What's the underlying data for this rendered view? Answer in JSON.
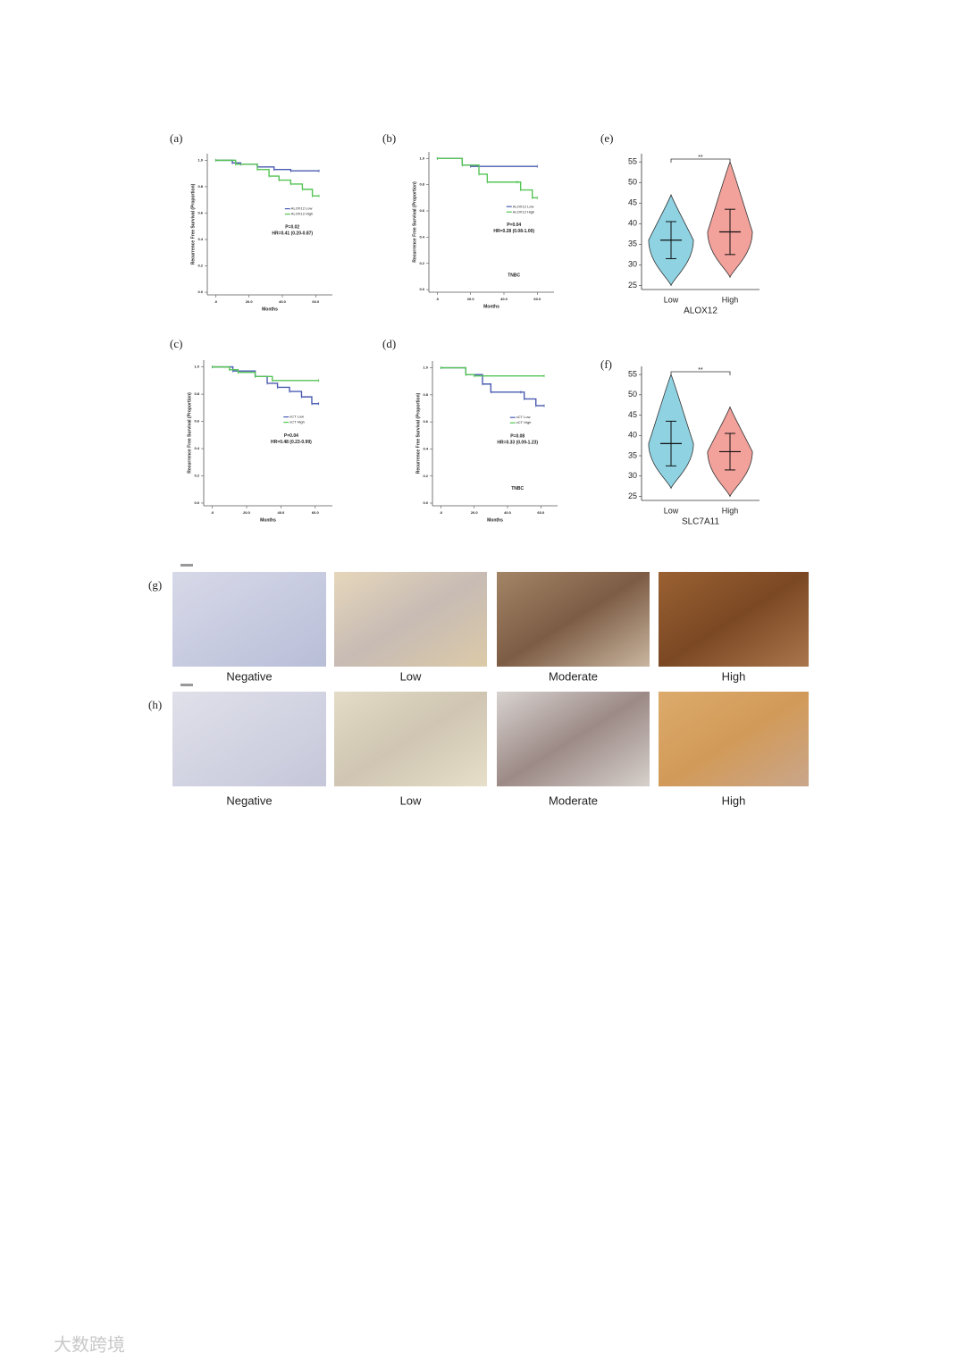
{
  "chart_data": [
    {
      "type": "km",
      "label": "(a)",
      "ylabel": "Recurrence Free Survival (Proportion)",
      "xlabel": "Months",
      "xlim": [
        -5,
        70
      ],
      "xticks": [
        {
          "value": 0,
          "label": ".0"
        },
        {
          "value": 20,
          "label": "20.0"
        },
        {
          "value": 40,
          "label": "40.0"
        },
        {
          "value": 60,
          "label": "60.0"
        }
      ],
      "ylim": [
        -0.02,
        1.05
      ],
      "yticks": [
        {
          "value": 0,
          "label": "0.0"
        },
        {
          "value": 0.2,
          "label": "0.2"
        },
        {
          "value": 0.4,
          "label": "0.4"
        },
        {
          "value": 0.6,
          "label": "0.6"
        },
        {
          "value": 0.8,
          "label": "0.8"
        },
        {
          "value": 1,
          "label": "1.0"
        }
      ],
      "series": [
        {
          "name": "ALOX12 Low",
          "color": "#4a5bb0",
          "x": [
            0,
            10,
            15,
            25,
            35,
            45,
            62
          ],
          "values": [
            1,
            0.98,
            0.97,
            0.95,
            0.93,
            0.92,
            0.92
          ]
        },
        {
          "name": "ALOX12 High",
          "color": "#55c455",
          "x": [
            0,
            12,
            25,
            32,
            38,
            45,
            52,
            58,
            62
          ],
          "values": [
            1,
            0.97,
            0.93,
            0.88,
            0.85,
            0.82,
            0.78,
            0.73,
            0.73
          ]
        }
      ],
      "annotations": [
        "P=0.02",
        "HR=0.41 (0.20-0.87)"
      ]
    },
    {
      "type": "km",
      "label": "(b)",
      "ylabel": "Recurrence Free Survival (Proportion)",
      "xlabel": "Months",
      "xlim": [
        -5,
        70
      ],
      "xticks": [
        {
          "value": 0,
          "label": ".0"
        },
        {
          "value": 20,
          "label": "20.0"
        },
        {
          "value": 40,
          "label": "40.0"
        },
        {
          "value": 60,
          "label": "60.0"
        }
      ],
      "ylim": [
        -0.02,
        1.05
      ],
      "yticks": [
        {
          "value": 0,
          "label": "0.0"
        },
        {
          "value": 0.2,
          "label": "0.2"
        },
        {
          "value": 0.4,
          "label": "0.4"
        },
        {
          "value": 0.6,
          "label": "0.6"
        },
        {
          "value": 0.8,
          "label": "0.8"
        },
        {
          "value": 1,
          "label": "1.0"
        }
      ],
      "series": [
        {
          "name": "ALOX12 Low",
          "color": "#4a5bb0",
          "x": [
            0,
            15,
            20,
            60
          ],
          "values": [
            1,
            0.95,
            0.94,
            0.94
          ]
        },
        {
          "name": "ALOX12 High",
          "color": "#55c455",
          "x": [
            0,
            15,
            25,
            30,
            48,
            50,
            57,
            60
          ],
          "values": [
            1,
            0.95,
            0.88,
            0.82,
            0.82,
            0.76,
            0.7,
            0.7
          ]
        }
      ],
      "annotations": [
        "P=0.04",
        "HR=0.28 (0.08-1.00)",
        "TNBC"
      ]
    },
    {
      "type": "violin",
      "label": "(e)",
      "xlabel": "ALOX12",
      "significance": "**",
      "categories": [
        "Low",
        "High"
      ],
      "colors": [
        "#8fd3e3",
        "#f2a19b"
      ],
      "ylim": [
        24,
        57
      ],
      "yticks": [
        25,
        30,
        35,
        40,
        45,
        50,
        55
      ],
      "mean": [
        36,
        38
      ],
      "sd": [
        4.5,
        5.5
      ],
      "min": [
        25,
        27
      ],
      "max": [
        47,
        55
      ]
    },
    {
      "type": "km",
      "label": "(c)",
      "ylabel": "Recurrence Free Survival (Proportion)",
      "xlabel": "Months",
      "xlim": [
        -5,
        70
      ],
      "xticks": [
        {
          "value": 0,
          "label": ".0"
        },
        {
          "value": 20,
          "label": "20.0"
        },
        {
          "value": 40,
          "label": "40.0"
        },
        {
          "value": 60,
          "label": "60.0"
        }
      ],
      "ylim": [
        -0.02,
        1.05
      ],
      "yticks": [
        {
          "value": 0,
          "label": "0.0"
        },
        {
          "value": 0.2,
          "label": "0.2"
        },
        {
          "value": 0.4,
          "label": "0.4"
        },
        {
          "value": 0.6,
          "label": "0.6"
        },
        {
          "value": 0.8,
          "label": "0.8"
        },
        {
          "value": 1,
          "label": "1.0"
        }
      ],
      "series": [
        {
          "name": "xCT Low",
          "color": "#4a5bb0",
          "x": [
            0,
            12,
            25,
            32,
            38,
            45,
            52,
            58,
            62
          ],
          "values": [
            1,
            0.97,
            0.93,
            0.88,
            0.85,
            0.82,
            0.78,
            0.73,
            0.73
          ]
        },
        {
          "name": "xCT High",
          "color": "#55c455",
          "x": [
            0,
            10,
            15,
            25,
            35,
            62
          ],
          "values": [
            1,
            0.98,
            0.96,
            0.93,
            0.9,
            0.9
          ]
        }
      ],
      "annotations": [
        "P=0.04",
        "HR=0.48 (0.23-0.99)"
      ]
    },
    {
      "type": "km",
      "label": "(d)",
      "ylabel": "Recurrence Free Survival (Proportion)",
      "xlabel": "Months",
      "xlim": [
        -5,
        70
      ],
      "xticks": [
        {
          "value": 0,
          "label": ".0"
        },
        {
          "value": 20,
          "label": "20.0"
        },
        {
          "value": 40,
          "label": "40.0"
        },
        {
          "value": 60,
          "label": "60.0"
        }
      ],
      "ylim": [
        -0.02,
        1.05
      ],
      "yticks": [
        {
          "value": 0,
          "label": "0.0"
        },
        {
          "value": 0.2,
          "label": "0.2"
        },
        {
          "value": 0.4,
          "label": "0.4"
        },
        {
          "value": 0.6,
          "label": "0.6"
        },
        {
          "value": 0.8,
          "label": "0.8"
        },
        {
          "value": 1,
          "label": "1.0"
        }
      ],
      "series": [
        {
          "name": "xCT Low",
          "color": "#4a5bb0",
          "x": [
            0,
            15,
            25,
            30,
            48,
            50,
            57,
            62
          ],
          "values": [
            1,
            0.95,
            0.88,
            0.82,
            0.82,
            0.77,
            0.72,
            0.72
          ]
        },
        {
          "name": "xCT High",
          "color": "#55c455",
          "x": [
            0,
            15,
            20,
            62
          ],
          "values": [
            1,
            0.95,
            0.94,
            0.94
          ]
        }
      ],
      "annotations": [
        "P=0.08",
        "HR=0.33 (0.09-1.23)",
        "TNBC"
      ]
    },
    {
      "type": "violin",
      "label": "(f)",
      "xlabel": "SLC7A11",
      "significance": "**",
      "categories": [
        "Low",
        "High"
      ],
      "colors": [
        "#8fd3e3",
        "#f2a19b"
      ],
      "ylim": [
        24,
        57
      ],
      "yticks": [
        25,
        30,
        35,
        40,
        45,
        50,
        55
      ],
      "mean": [
        38,
        36
      ],
      "sd": [
        5.5,
        4.5
      ],
      "min": [
        27,
        25
      ],
      "max": [
        55,
        47
      ]
    }
  ],
  "ihc": [
    {
      "label": "(g)",
      "images": [
        "Negative",
        "Low",
        "Moderate",
        "High"
      ]
    },
    {
      "label": "(h)",
      "images": [
        "Negative",
        "Low",
        "Moderate",
        "High"
      ]
    }
  ],
  "watermark": "大数跨境"
}
